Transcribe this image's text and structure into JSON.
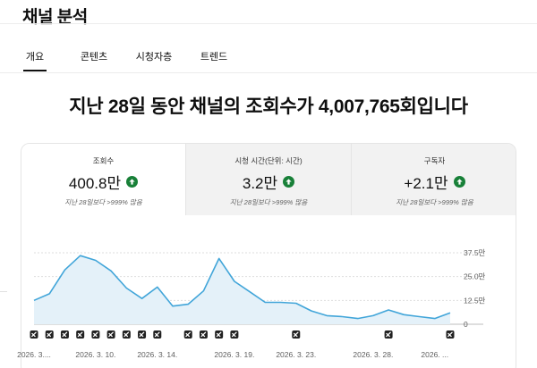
{
  "page": {
    "title": "채널 분석"
  },
  "tabs": [
    {
      "label": "개요",
      "active": true
    },
    {
      "label": "콘텐츠",
      "active": false
    },
    {
      "label": "시청자층",
      "active": false
    },
    {
      "label": "트렌드",
      "active": false
    }
  ],
  "headline": "지난 28일 동안 채널의 조회수가 4,007,765회입니다",
  "metrics": [
    {
      "label": "조회수",
      "value": "400.8만",
      "trend_icon": "arrow-up-icon",
      "note": "지난 28일보다 >999% 많음"
    },
    {
      "label": "시청 시간(단위: 시간)",
      "value": "3.2만",
      "trend_icon": "arrow-up-icon",
      "note": "지난 28일보다 >999% 많음"
    },
    {
      "label": "구독자",
      "value": "+2.1만",
      "trend_icon": "arrow-up-icon",
      "note": "지난 28일보다 >999% 많음"
    }
  ],
  "colors": {
    "line": "#41a5d9",
    "area": "#e4f1f9",
    "up": "#188038",
    "grid": "#dddddd"
  },
  "chart_data": {
    "type": "area",
    "x_labels": [
      "2026. 3....",
      "2026. 3. 10.",
      "2026. 3. 14.",
      "2026. 3. 19.",
      "2026. 3. 23.",
      "2026. 3. 28.",
      "2026. ..."
    ],
    "x_label_index": [
      0,
      4,
      8,
      13,
      17,
      22,
      26
    ],
    "values": [
      12.5,
      16,
      28.5,
      36,
      33.5,
      28,
      19,
      13.5,
      19.5,
      9.5,
      10.5,
      17.5,
      34.5,
      22.5,
      17,
      11.5,
      11.5,
      11,
      7,
      4.5,
      4,
      3,
      4.5,
      7.5,
      5,
      4,
      3,
      6
    ],
    "y_ticks": [
      "37.5만",
      "25.0만",
      "12.5만",
      "0"
    ],
    "y_tick_values": [
      37.5,
      25,
      12.5,
      0
    ],
    "ylim": [
      0,
      37.5
    ],
    "unit": "만",
    "marker_icon": "shorts-icon",
    "marker_index": [
      0,
      1,
      2,
      3,
      4,
      5,
      6,
      7,
      8,
      10,
      11,
      12,
      13,
      17,
      23,
      27
    ]
  }
}
